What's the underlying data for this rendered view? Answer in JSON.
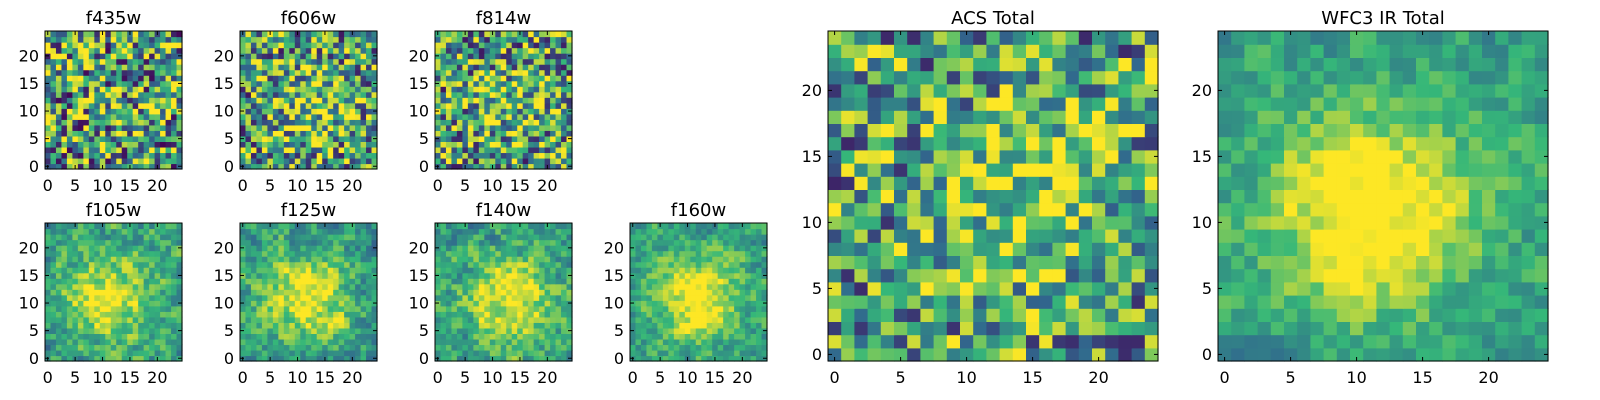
{
  "colormap": [
    "#440154",
    "#31688e",
    "#35b779",
    "#fde725"
  ],
  "chart_data": [
    {
      "type": "heatmap",
      "title": "f435w",
      "size": 25,
      "xticks": [
        0,
        5,
        10,
        15,
        20
      ],
      "yticks": [
        0,
        5,
        10,
        15,
        20
      ],
      "blob": [
        13,
        11
      ],
      "blob_strength": 0.08,
      "noise": 0.55,
      "smooth": 0,
      "seed": 11
    },
    {
      "type": "heatmap",
      "title": "f606w",
      "size": 25,
      "xticks": [
        0,
        5,
        10,
        15,
        20
      ],
      "yticks": [
        0,
        5,
        10,
        15,
        20
      ],
      "blob": [
        13,
        11
      ],
      "blob_strength": 0.25,
      "noise": 0.5,
      "smooth": 0,
      "seed": 23
    },
    {
      "type": "heatmap",
      "title": "f814w",
      "size": 25,
      "xticks": [
        0,
        5,
        10,
        15,
        20
      ],
      "yticks": [
        0,
        5,
        10,
        15,
        20
      ],
      "blob": [
        13,
        11
      ],
      "blob_strength": 0.18,
      "noise": 0.5,
      "smooth": 0,
      "seed": 37
    },
    {
      "type": "heatmap",
      "title": "f105w",
      "size": 25,
      "xticks": [
        0,
        5,
        10,
        15,
        20
      ],
      "yticks": [
        0,
        5,
        10,
        15,
        20
      ],
      "blob": [
        11,
        11
      ],
      "blob_strength": 0.45,
      "noise": 0.35,
      "smooth": 1,
      "seed": 41
    },
    {
      "type": "heatmap",
      "title": "f125w",
      "size": 25,
      "xticks": [
        0,
        5,
        10,
        15,
        20
      ],
      "yticks": [
        0,
        5,
        10,
        15,
        20
      ],
      "blob": [
        12,
        11
      ],
      "blob_strength": 0.45,
      "noise": 0.35,
      "smooth": 1,
      "seed": 53
    },
    {
      "type": "heatmap",
      "title": "f140w",
      "size": 25,
      "xticks": [
        0,
        5,
        10,
        15,
        20
      ],
      "yticks": [
        0,
        5,
        10,
        15,
        20
      ],
      "blob": [
        13,
        11
      ],
      "blob_strength": 0.45,
      "noise": 0.35,
      "smooth": 1,
      "seed": 61
    },
    {
      "type": "heatmap",
      "title": "f160w",
      "size": 25,
      "xticks": [
        0,
        5,
        10,
        15,
        20
      ],
      "yticks": [
        0,
        5,
        10,
        15,
        20
      ],
      "blob": [
        12,
        11
      ],
      "blob_strength": 0.5,
      "noise": 0.3,
      "smooth": 1,
      "seed": 71
    },
    {
      "type": "heatmap",
      "title": "ACS Total",
      "size": 25,
      "xticks": [
        0,
        5,
        10,
        15,
        20
      ],
      "yticks": [
        0,
        5,
        10,
        15,
        20
      ],
      "blob": [
        15,
        12
      ],
      "blob_strength": 0.35,
      "noise": 0.45,
      "smooth": 0,
      "seed": 83
    },
    {
      "type": "heatmap",
      "title": "WFC3 IR Total",
      "size": 25,
      "xticks": [
        0,
        5,
        10,
        15,
        20
      ],
      "yticks": [
        0,
        5,
        10,
        15,
        20
      ],
      "blob": [
        11,
        11
      ],
      "blob_strength": 0.55,
      "noise": 0.25,
      "smooth": 1,
      "seed": 97
    }
  ]
}
